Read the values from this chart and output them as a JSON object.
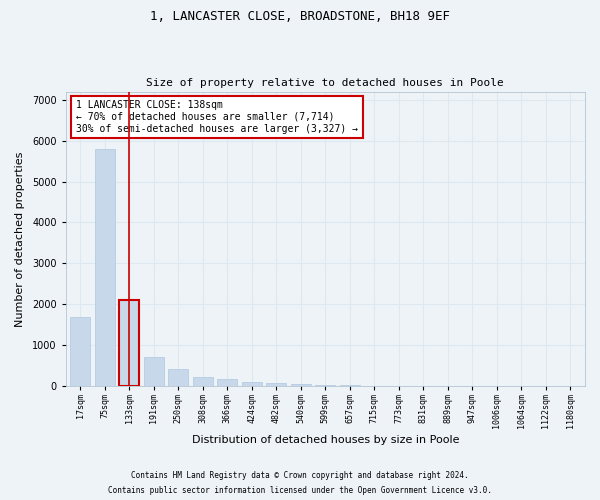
{
  "title_line1": "1, LANCASTER CLOSE, BROADSTONE, BH18 9EF",
  "title_line2": "Size of property relative to detached houses in Poole",
  "xlabel": "Distribution of detached houses by size in Poole",
  "ylabel": "Number of detached properties",
  "footnote1": "Contains HM Land Registry data © Crown copyright and database right 2024.",
  "footnote2": "Contains public sector information licensed under the Open Government Licence v3.0.",
  "bar_labels": [
    "17sqm",
    "75sqm",
    "133sqm",
    "191sqm",
    "250sqm",
    "308sqm",
    "366sqm",
    "424sqm",
    "482sqm",
    "540sqm",
    "599sqm",
    "657sqm",
    "715sqm",
    "773sqm",
    "831sqm",
    "889sqm",
    "947sqm",
    "1006sqm",
    "1064sqm",
    "1122sqm",
    "1180sqm"
  ],
  "bar_values": [
    1700,
    5800,
    2100,
    700,
    420,
    230,
    170,
    110,
    70,
    45,
    30,
    18,
    12,
    8,
    5,
    3,
    2,
    2,
    1,
    1,
    1
  ],
  "bar_color": "#c8d8eb",
  "bar_edge_color": "#b0c8e0",
  "highlighted_bar_index": 2,
  "highlight_line_color": "#cc0000",
  "annotation_text": "1 LANCASTER CLOSE: 138sqm\n← 70% of detached houses are smaller (7,714)\n30% of semi-detached houses are larger (3,327) →",
  "annotation_box_color": "#ffffff",
  "annotation_box_edge_color": "#cc0000",
  "ylim": [
    0,
    7200
  ],
  "yticks": [
    0,
    1000,
    2000,
    3000,
    4000,
    5000,
    6000,
    7000
  ],
  "grid_color": "#dde8f0",
  "background_color": "#eef3f8",
  "plot_bg_color": "#eef3f8",
  "title1_fontsize": 9,
  "title2_fontsize": 8,
  "xlabel_fontsize": 8,
  "ylabel_fontsize": 8,
  "xtick_fontsize": 6,
  "ytick_fontsize": 7,
  "footnote_fontsize": 5.5,
  "annotation_fontsize": 7
}
